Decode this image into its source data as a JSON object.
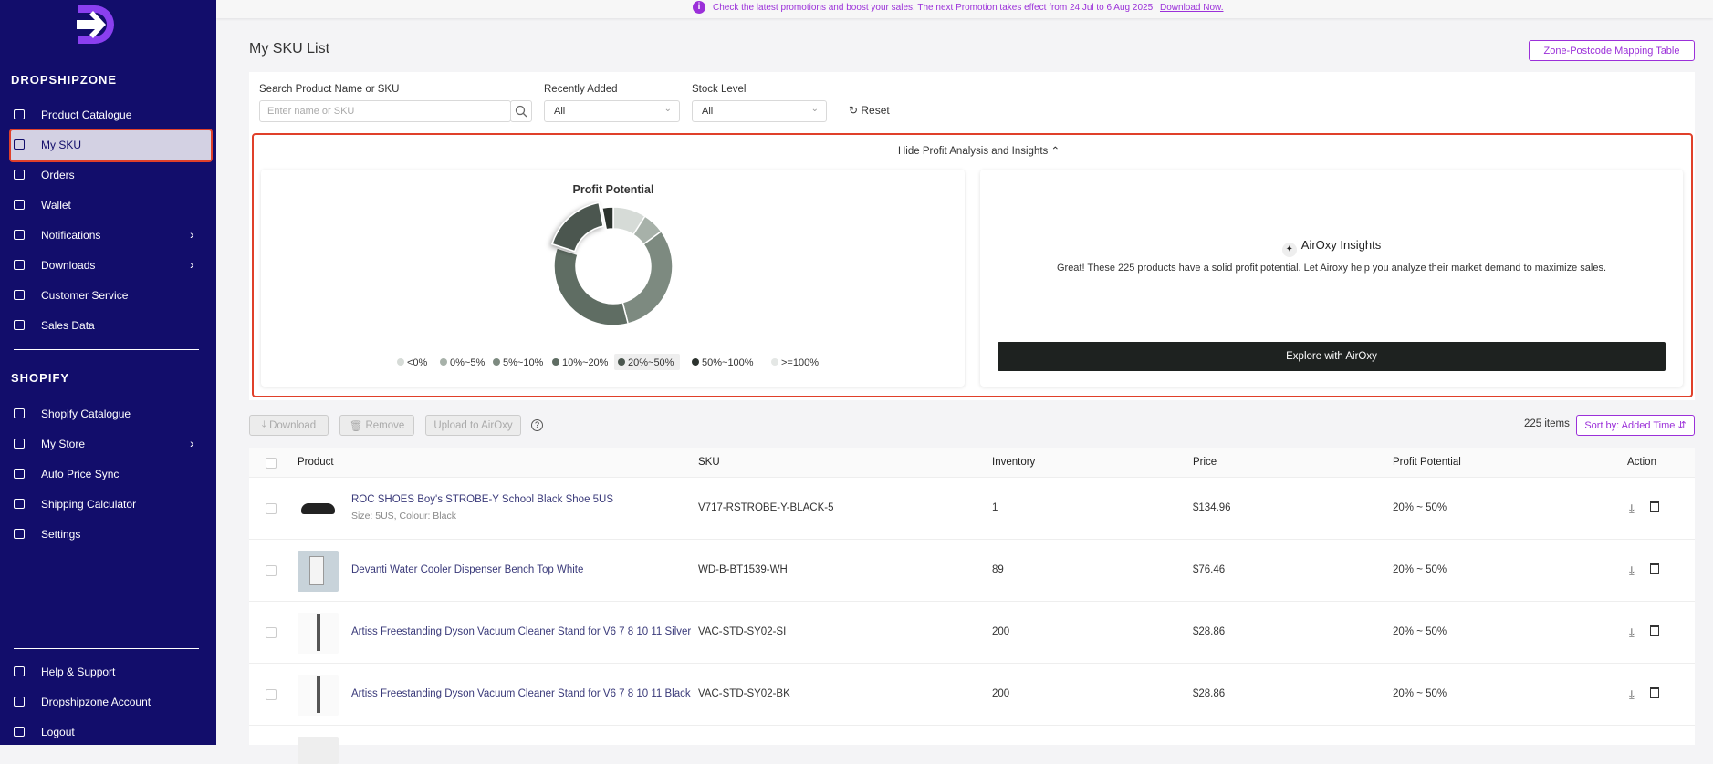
{
  "banner": {
    "text": "Check the latest promotions and boost your sales. The next Promotion takes effect from 24 Jul to 6 Aug 2025.",
    "link": "Download Now."
  },
  "sidebar": {
    "brand": "DROPSHIPZONE",
    "items": [
      {
        "label": "Product Catalogue",
        "submenu": false,
        "active": false
      },
      {
        "label": "My SKU",
        "submenu": false,
        "active": true
      },
      {
        "label": "Orders",
        "submenu": false,
        "active": false
      },
      {
        "label": "Wallet",
        "submenu": false,
        "active": false
      },
      {
        "label": "Notifications",
        "submenu": true,
        "active": false
      },
      {
        "label": "Downloads",
        "submenu": true,
        "active": false
      },
      {
        "label": "Customer Service",
        "submenu": false,
        "active": false
      },
      {
        "label": "Sales Data",
        "submenu": false,
        "active": false
      }
    ],
    "shopify_heading": "SHOPIFY",
    "shopify_items": [
      {
        "label": "Shopify Catalogue",
        "submenu": false
      },
      {
        "label": "My Store",
        "submenu": true
      },
      {
        "label": "Auto Price Sync",
        "submenu": false
      },
      {
        "label": "Shipping Calculator",
        "submenu": false
      },
      {
        "label": "Settings",
        "submenu": false
      }
    ],
    "footer_items": [
      {
        "label": "Help & Support"
      },
      {
        "label": "Dropshipzone Account"
      },
      {
        "label": "Logout"
      }
    ]
  },
  "header": {
    "title": "My SKU List",
    "button": "Zone-Postcode Mapping Table"
  },
  "filters": {
    "search_label": "Search Product Name or SKU",
    "search_placeholder": "Enter name or SKU",
    "recent_label": "Recently Added",
    "recent_value": "All",
    "stock_label": "Stock Level",
    "stock_value": "All",
    "reset": "Reset"
  },
  "insights": {
    "toggle": "Hide Profit Analysis and Insights",
    "airoxy_title": "AirOxy Insights",
    "airoxy_text": "Great! These 225 products have a solid profit potential. Let Airoxy help you analyze their market demand to maximize sales.",
    "airoxy_button": "Explore with AirOxy"
  },
  "chart_data": {
    "type": "pie",
    "title": "Profit Potential",
    "categories": [
      "<0%",
      "0%~5%",
      "5%~10%",
      "10%~20%",
      "20%~50%",
      "50%~100%",
      ">=100%"
    ],
    "values": [
      9,
      6,
      31,
      34,
      17,
      3,
      0
    ],
    "colors": [
      "#d6dbd7",
      "#a7b1a9",
      "#7d8a80",
      "#5f6d63",
      "#4b574f",
      "#2c332e",
      "#e4e7e5"
    ],
    "highlight": 4
  },
  "toolbar": {
    "download": "Download",
    "remove": "Remove",
    "upload": "Upload to AirOxy",
    "count": "225 items",
    "sort": "Sort by: Added Time"
  },
  "table": {
    "columns": [
      "Product",
      "SKU",
      "Inventory",
      "Price",
      "Profit Potential",
      "Action"
    ],
    "rows": [
      {
        "product": "ROC SHOES Boy's STROBE-Y School Black Shoe 5US",
        "variant": "Size: 5US, Colour: Black",
        "sku": "V717-RSTROBE-Y-BLACK-5",
        "inventory": "1",
        "price": "$134.96",
        "profit": "20% ~ 50%"
      },
      {
        "product": "Devanti Water Cooler Dispenser Bench Top White",
        "sku": "WD-B-BT1539-WH",
        "inventory": "89",
        "price": "$76.46",
        "profit": "20% ~ 50%"
      },
      {
        "product": "Artiss Freestanding Dyson Vacuum Cleaner Stand for V6 7 8 10 11 Silver",
        "sku": "VAC-STD-SY02-SI",
        "inventory": "200",
        "price": "$28.86",
        "profit": "20% ~ 50%"
      },
      {
        "product": "Artiss Freestanding Dyson Vacuum Cleaner Stand for V6 7 8 10 11 Black",
        "sku": "VAC-STD-SY02-BK",
        "inventory": "200",
        "price": "$28.86",
        "profit": "20% ~ 50%"
      }
    ]
  }
}
